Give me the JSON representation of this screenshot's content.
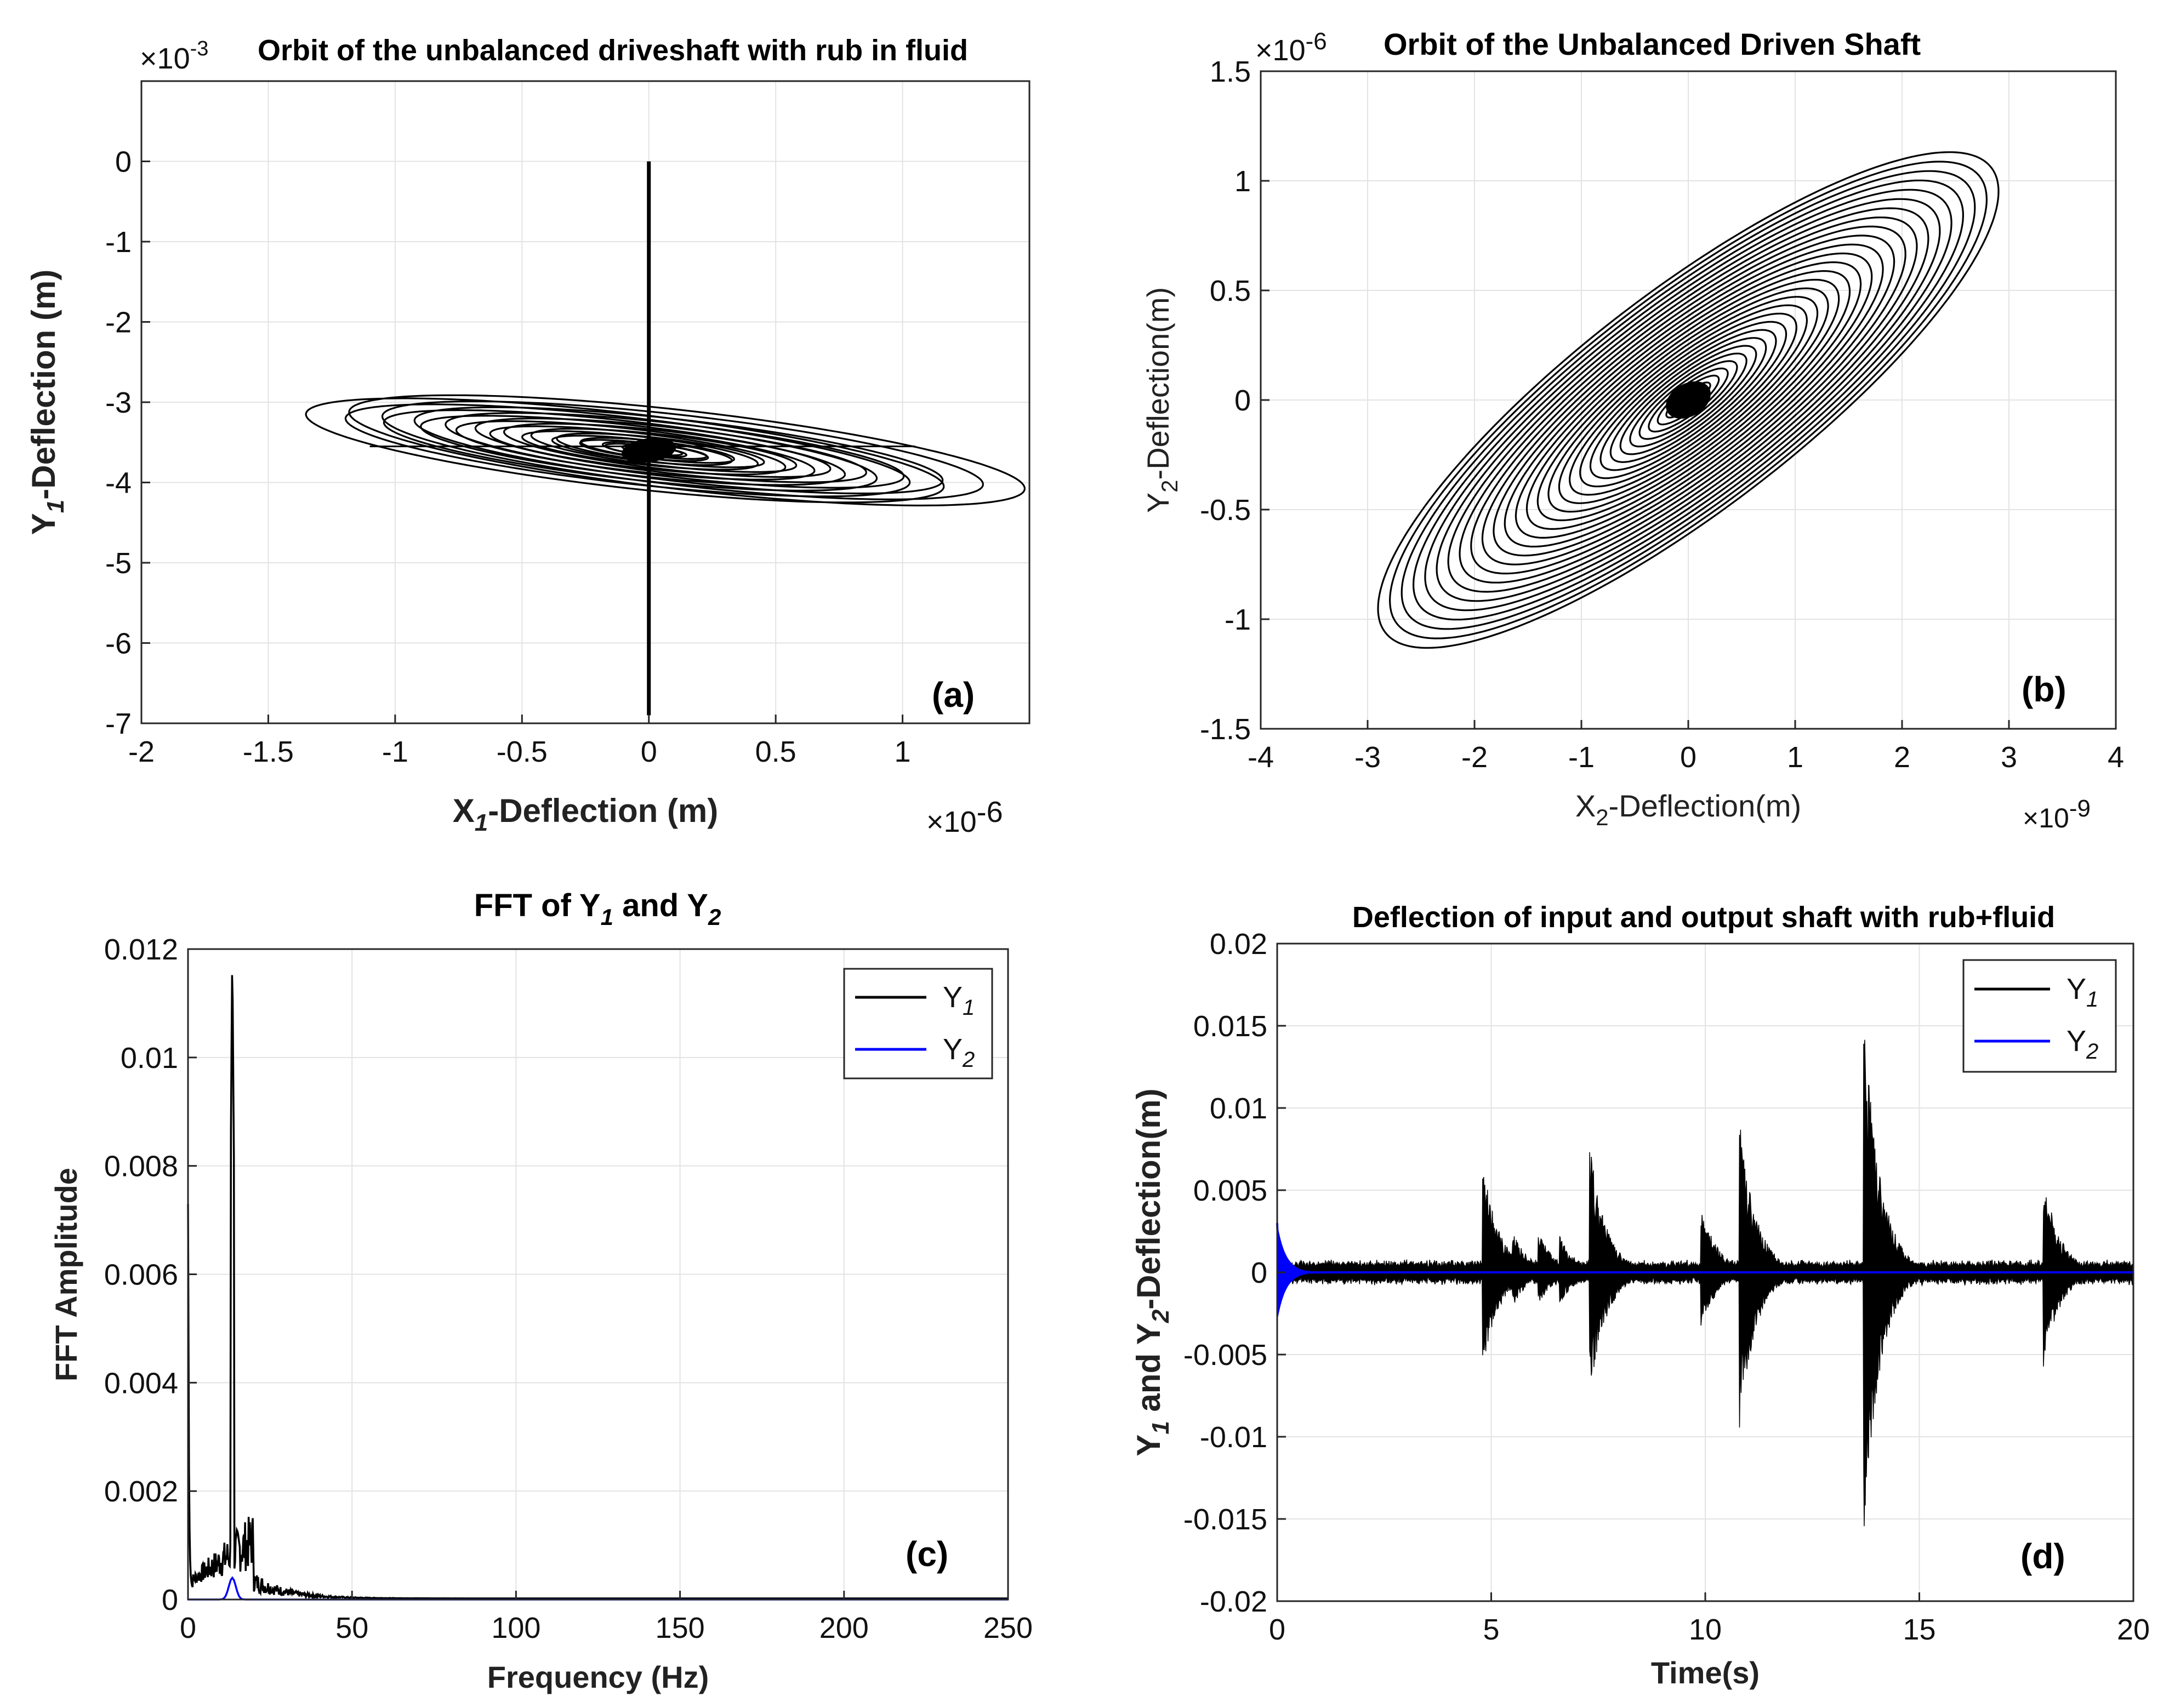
{
  "chart_data": [
    {
      "id": "a",
      "type": "line",
      "panel_label": "(a)",
      "title": "Orbit of the unbalanced driveshaft with rub in fluid",
      "xlabel": {
        "pre": "X",
        "sub": "1",
        "post": "-Deflection (m)"
      },
      "ylabel": {
        "pre": "Y",
        "sub": "1",
        "post": "-Deflection (m)"
      },
      "x_exponent": {
        "base": "×10",
        "exp": "-6"
      },
      "y_exponent": {
        "base": "×10",
        "exp": "-3"
      },
      "xlim": [
        -2,
        1.5
      ],
      "ylim": [
        -7,
        1
      ],
      "xticks": [
        -2,
        -1.5,
        -1,
        -0.5,
        0,
        0.5,
        1
      ],
      "xtick_labels": [
        "-2",
        "-1.5",
        "-1",
        "-0.5",
        "0",
        "0.5",
        "1"
      ],
      "yticks": [
        0,
        -1,
        -2,
        -3,
        -4,
        -5,
        -6,
        -7
      ],
      "ytick_labels": [
        "0",
        "-1",
        "-2",
        "-3",
        "-4",
        "-5",
        "-6",
        "-7"
      ],
      "grid": true,
      "center": [
        0,
        -3.6
      ],
      "vertical_line_x": 0,
      "vertical_line_y": [
        -6.9,
        0
      ],
      "horizontal_segment": {
        "x": [
          -1.1,
          1.05
        ],
        "y": -3.55
      },
      "orbit_max_half_axis": [
        1.4,
        1.1
      ],
      "orbit_tilt_deg": -18,
      "orbit_rings": 24,
      "series": [
        {
          "name": "orbit",
          "color": "#000000"
        }
      ]
    },
    {
      "id": "b",
      "type": "line",
      "panel_label": "(b)",
      "title": "Orbit of the Unbalanced Driven Shaft",
      "xlabel": {
        "pre": "X",
        "sub": "2",
        "post": "-Deflection(m)"
      },
      "ylabel": {
        "pre": "Y",
        "sub": "2",
        "post": "-Deflection(m)"
      },
      "x_exponent": {
        "base": "×10",
        "exp": "-9"
      },
      "y_exponent": {
        "base": "×10",
        "exp": "-6"
      },
      "xlim": [
        -4,
        4
      ],
      "ylim": [
        -1.5,
        1.5
      ],
      "xticks": [
        -4,
        -3,
        -2,
        -1,
        0,
        1,
        2,
        3,
        4
      ],
      "xtick_labels": [
        "-4",
        "-3",
        "-2",
        "-1",
        "0",
        "1",
        "2",
        "3",
        "4"
      ],
      "yticks": [
        1.5,
        1,
        0.5,
        0,
        -0.5,
        -1,
        -1.5
      ],
      "ytick_labels": [
        "1.5",
        "1",
        "0.5",
        "0",
        "-0.5",
        "-1",
        "-1.5"
      ],
      "grid": true,
      "center": [
        0,
        0
      ],
      "orbit_max_x": 3.0,
      "orbit_max_y": 1.2,
      "orbit_rings": 30,
      "series": [
        {
          "name": "orbit",
          "color": "#000000"
        }
      ]
    },
    {
      "id": "c",
      "type": "line",
      "panel_label": "(c)",
      "title": {
        "t1": "FFT of  Y",
        "s1": "1",
        "t2": " and  Y",
        "s2": "2"
      },
      "xlabel": "Frequency (Hz)",
      "ylabel": "FFT Amplitude",
      "xlim": [
        0,
        250
      ],
      "ylim": [
        0,
        0.012
      ],
      "xticks": [
        0,
        50,
        100,
        150,
        200,
        250
      ],
      "xtick_labels": [
        "0",
        "50",
        "100",
        "150",
        "200",
        "250"
      ],
      "yticks": [
        0,
        0.002,
        0.004,
        0.006,
        0.008,
        0.01,
        0.012
      ],
      "ytick_labels": [
        "0",
        "0.002",
        "0.004",
        "0.006",
        "0.008",
        "0.01",
        "0.012"
      ],
      "grid": true,
      "legend": [
        {
          "name": "Y",
          "sub": "1",
          "color": "#000000"
        },
        {
          "name": "Y",
          "sub": "2",
          "color": "#0000ff"
        }
      ],
      "series": [
        {
          "name": "Y1",
          "color": "#000000",
          "dc_peak": 0.0073,
          "peak_freq": 13.5,
          "peak_amp": 0.012,
          "noise_level": 0.0008
        },
        {
          "name": "Y2",
          "color": "#0000ff",
          "peak_freq": 13.5,
          "peak_amp": 0.0004
        }
      ]
    },
    {
      "id": "d",
      "type": "line",
      "panel_label": "(d)",
      "title": "Deflection of input and output shaft with rub+fluid",
      "xlabel": "Time(s)",
      "ylabel": {
        "pre": "Y",
        "sub1": "1",
        "mid": " and  Y",
        "sub2": "2",
        "post": "-Deflection(m)"
      },
      "xlim": [
        0,
        20
      ],
      "ylim": [
        -0.02,
        0.02
      ],
      "xticks": [
        0,
        5,
        10,
        15,
        20
      ],
      "xtick_labels": [
        "0",
        "5",
        "10",
        "15",
        "20"
      ],
      "yticks": [
        0.02,
        0.015,
        0.01,
        0.005,
        0,
        -0.005,
        -0.01,
        -0.015,
        -0.02
      ],
      "ytick_labels": [
        "0.02",
        "0.015",
        "0.01",
        "0.005",
        "0",
        "-0.005",
        "-0.01",
        "-0.015",
        "-0.02"
      ],
      "grid": true,
      "legend": [
        {
          "name": "Y",
          "sub": "1",
          "color": "#000000"
        },
        {
          "name": "Y",
          "sub": "2",
          "color": "#0000ff"
        }
      ],
      "bursts": [
        {
          "t": 4.8,
          "up": 0.0068,
          "down": 0.006
        },
        {
          "t": 5.5,
          "up": 0.0025,
          "down": 0.0022
        },
        {
          "t": 6.1,
          "up": 0.0025,
          "down": 0.002
        },
        {
          "t": 6.6,
          "up": 0.0022,
          "down": 0.002
        },
        {
          "t": 7.3,
          "up": 0.0078,
          "down": 0.0077
        },
        {
          "t": 9.9,
          "up": 0.0042,
          "down": 0.0035
        },
        {
          "t": 10.8,
          "up": 0.0095,
          "down": 0.0095
        },
        {
          "t": 13.7,
          "up": 0.016,
          "down": 0.0162
        },
        {
          "t": 17.9,
          "up": 0.006,
          "down": 0.0058
        }
      ],
      "series": [
        {
          "name": "Y1",
          "color": "#000000",
          "base_amp": 0.0008
        },
        {
          "name": "Y2",
          "color": "#0000ff",
          "start_amp": 0.003
        }
      ]
    }
  ]
}
